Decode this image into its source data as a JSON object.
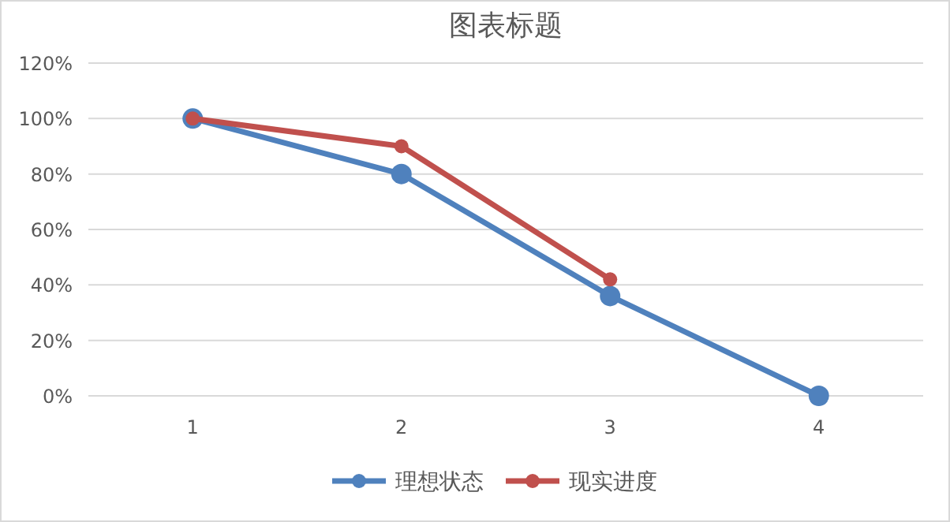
{
  "chart_data": {
    "type": "line",
    "title": "图表标题",
    "categories": [
      "1",
      "2",
      "3",
      "4"
    ],
    "series": [
      {
        "name": "理想状态",
        "color": "#4f81bd",
        "values": [
          100,
          80,
          36,
          0
        ]
      },
      {
        "name": "现实进度",
        "color": "#c0504d",
        "values": [
          100,
          90,
          42,
          null
        ]
      }
    ],
    "ylim": [
      0,
      120
    ],
    "yticks": [
      {
        "value": 0,
        "label": "0%"
      },
      {
        "value": 20,
        "label": "20%"
      },
      {
        "value": 40,
        "label": "40%"
      },
      {
        "value": 60,
        "label": "60%"
      },
      {
        "value": 80,
        "label": "80%"
      },
      {
        "value": 100,
        "label": "100%"
      },
      {
        "value": 120,
        "label": "120%"
      }
    ],
    "grid": "y",
    "legend": "bottom",
    "marker": "circle",
    "line_style": "solid"
  }
}
